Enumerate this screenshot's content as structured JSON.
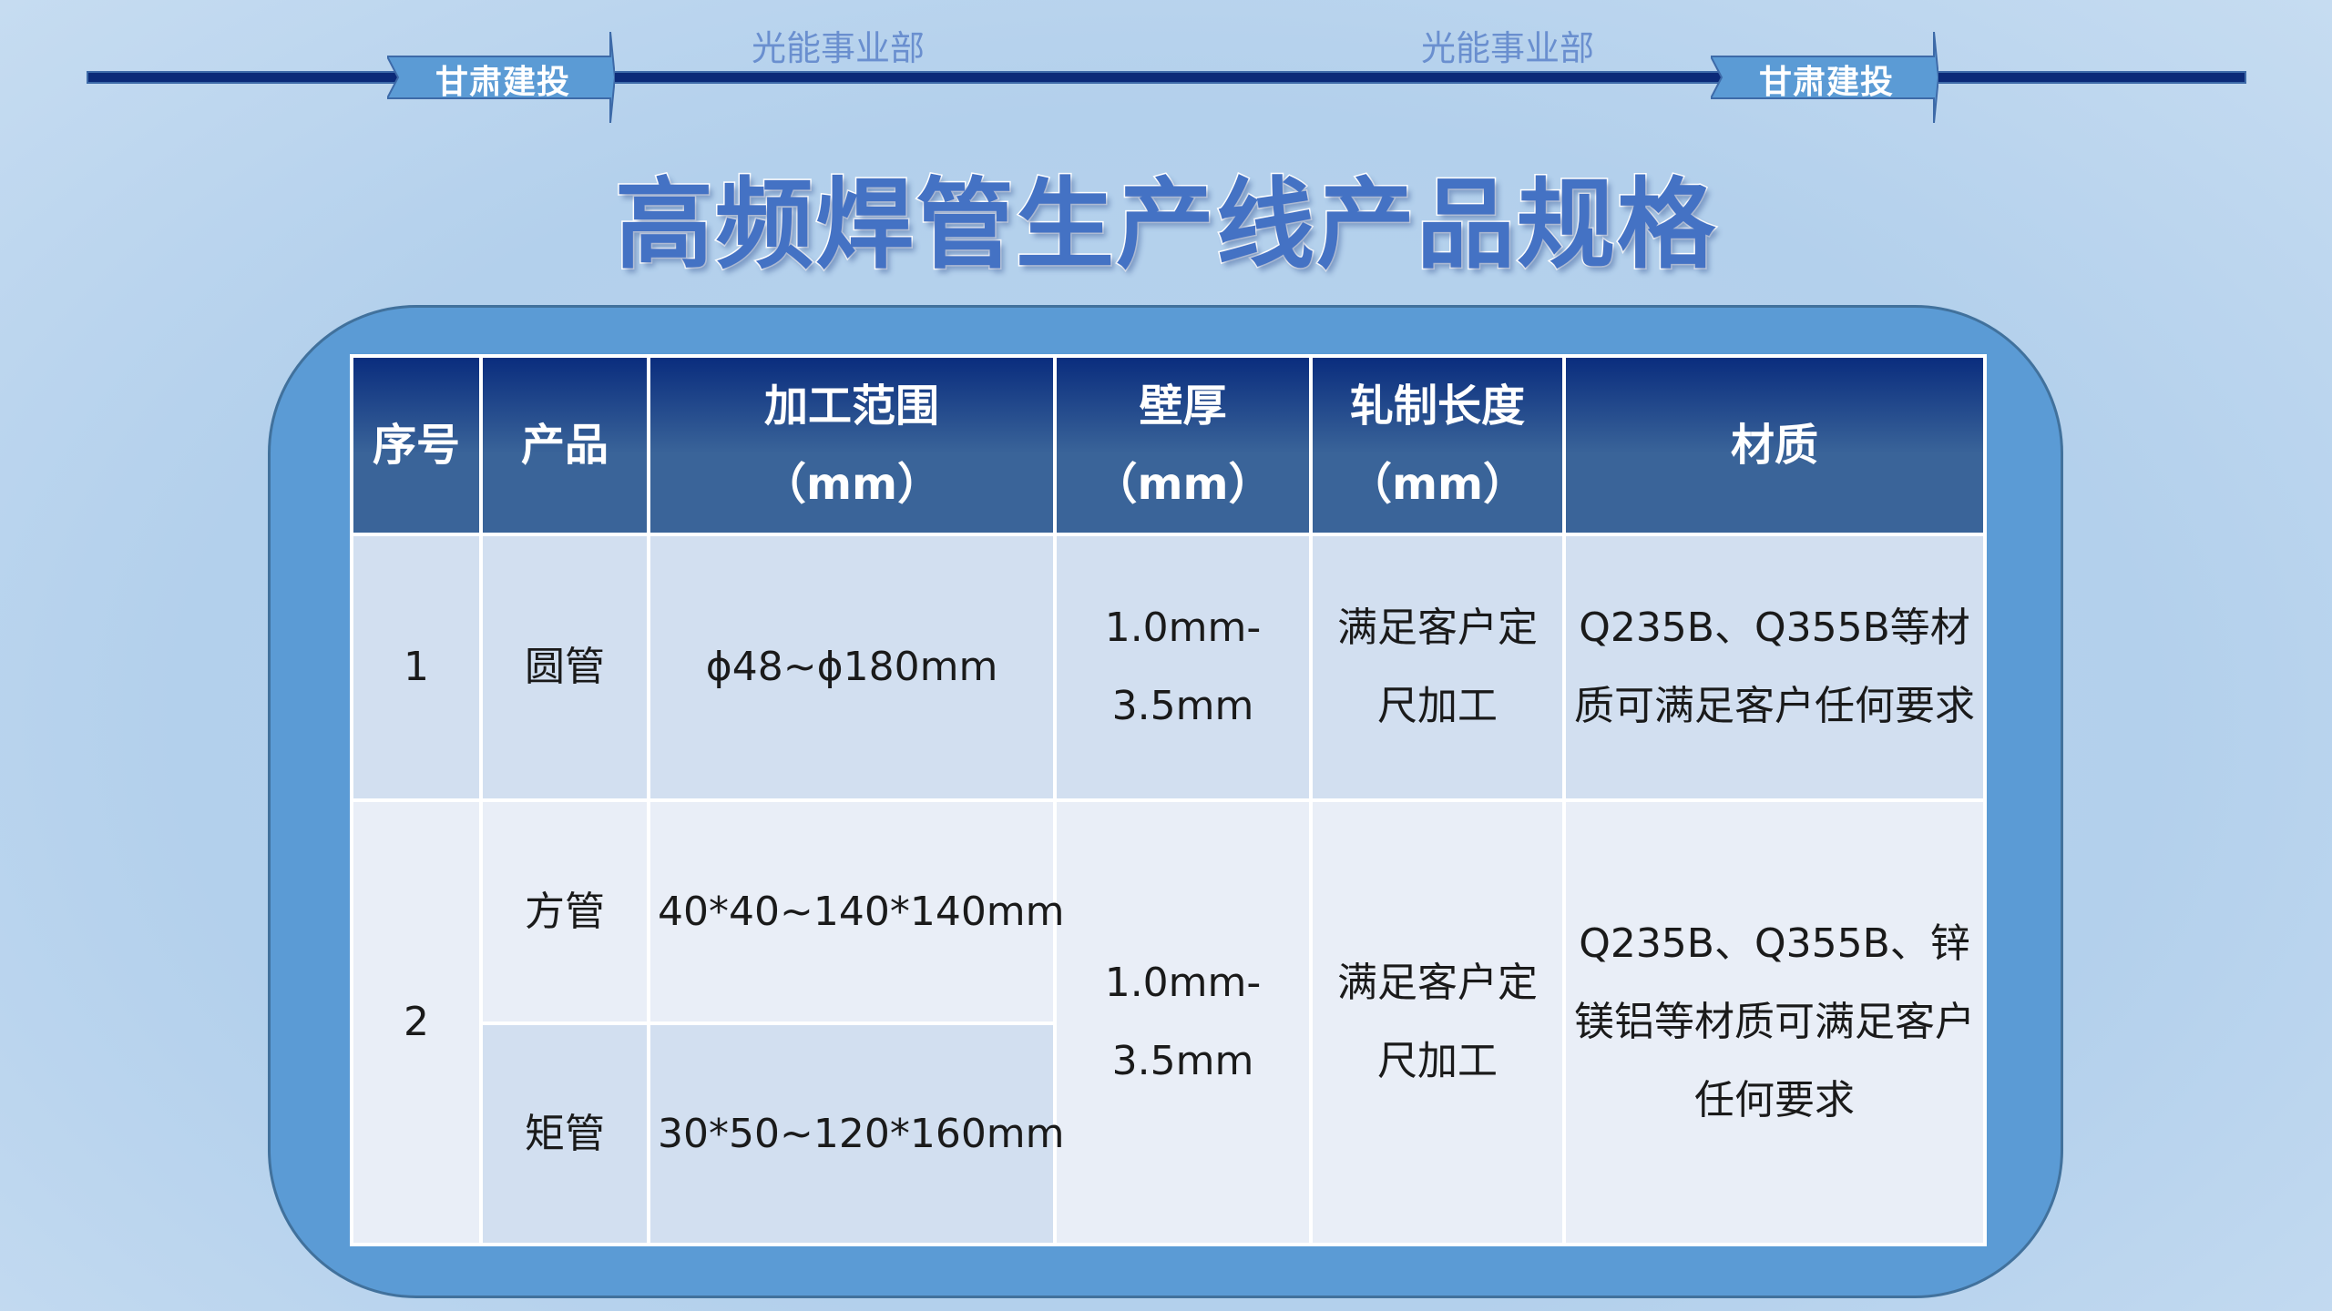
{
  "header": {
    "badges": [
      "甘肃建投",
      "甘肃建投"
    ],
    "departments": [
      "光能事业部",
      "光能事业部"
    ],
    "title": "高频焊管生产线产品规格"
  },
  "colors": {
    "rule": "#0b2a78",
    "arrow": "#5b9bd5",
    "title": "#4472c4",
    "panel": "#5b9bd5",
    "header_top": "#0a2d7e",
    "header_bottom": "#3a6499",
    "row_dark": "#d2dff0",
    "row_light": "#e9eef7"
  },
  "table": {
    "headers": [
      {
        "line1": "序号"
      },
      {
        "line1": "产品"
      },
      {
        "line1": "加工范围",
        "line2": "（mm）"
      },
      {
        "line1": "壁厚",
        "line2": "（mm）"
      },
      {
        "line1": "轧制长度",
        "line2": "（mm）"
      },
      {
        "line1": "材质"
      }
    ],
    "rows": [
      {
        "no": "1",
        "product": "圆管",
        "range": "ϕ48~ϕ180mm",
        "thickness": "1.0mm-3.5mm",
        "length": "满足客户定尺加工",
        "material": "Q235B、Q355B等材质可满足客户任何要求"
      },
      {
        "no": "2",
        "products": [
          {
            "product": "方管",
            "range": "40*40~140*140mm"
          },
          {
            "product": "矩管",
            "range": "30*50~120*160mm"
          }
        ],
        "thickness": "1.0mm-3.5mm",
        "length": "满足客户定尺加工",
        "material": "Q235B、Q355B、锌镁铝等材质可满足客户任何要求"
      }
    ]
  }
}
